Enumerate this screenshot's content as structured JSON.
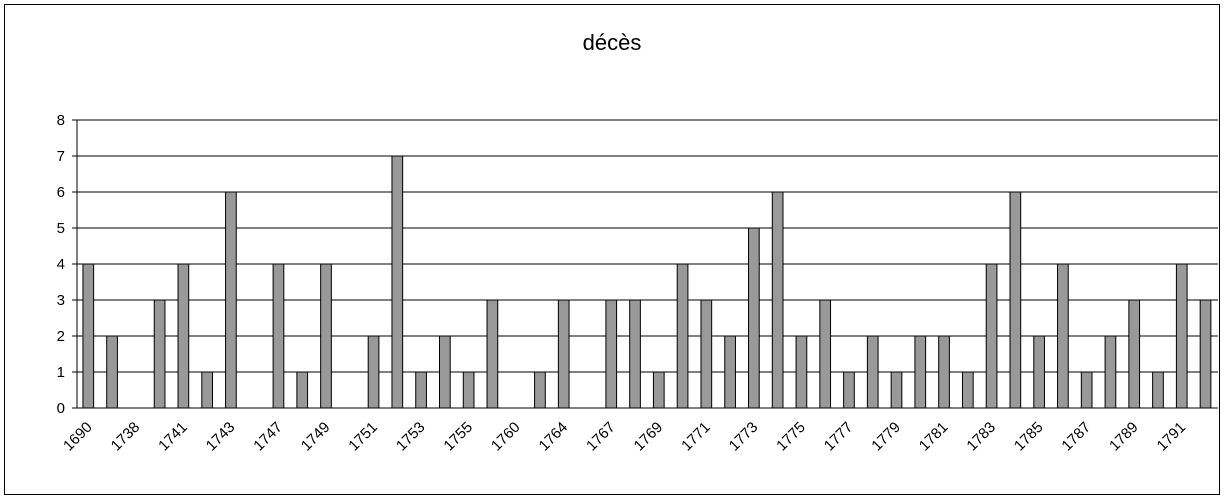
{
  "chart_data": {
    "type": "bar",
    "title": "décès",
    "categories": [
      "1690",
      null,
      "1738",
      null,
      "1741",
      null,
      "1743",
      null,
      "1747",
      null,
      "1749",
      null,
      "1751",
      null,
      "1753",
      null,
      "1755",
      null,
      "1760",
      null,
      "1764",
      null,
      "1767",
      null,
      "1769",
      null,
      "1771",
      null,
      "1773",
      null,
      "1775",
      null,
      "1777",
      null,
      "1779",
      null,
      "1781",
      null,
      "1783",
      null,
      "1785",
      null,
      "1787",
      null,
      "1789",
      null,
      "1791",
      null
    ],
    "values": [
      4,
      2,
      0,
      3,
      4,
      1,
      6,
      0,
      4,
      1,
      4,
      0,
      2,
      7,
      1,
      2,
      1,
      3,
      0,
      1,
      3,
      0,
      3,
      3,
      1,
      4,
      3,
      2,
      5,
      6,
      2,
      3,
      1,
      2,
      1,
      2,
      2,
      1,
      4,
      6,
      2,
      4,
      1,
      2,
      3,
      1,
      4,
      3
    ],
    "color": "#999999",
    "ylim": [
      0,
      8
    ],
    "yticks": [
      0,
      1,
      2,
      3,
      4,
      5,
      6,
      7,
      8
    ],
    "grid": true
  }
}
